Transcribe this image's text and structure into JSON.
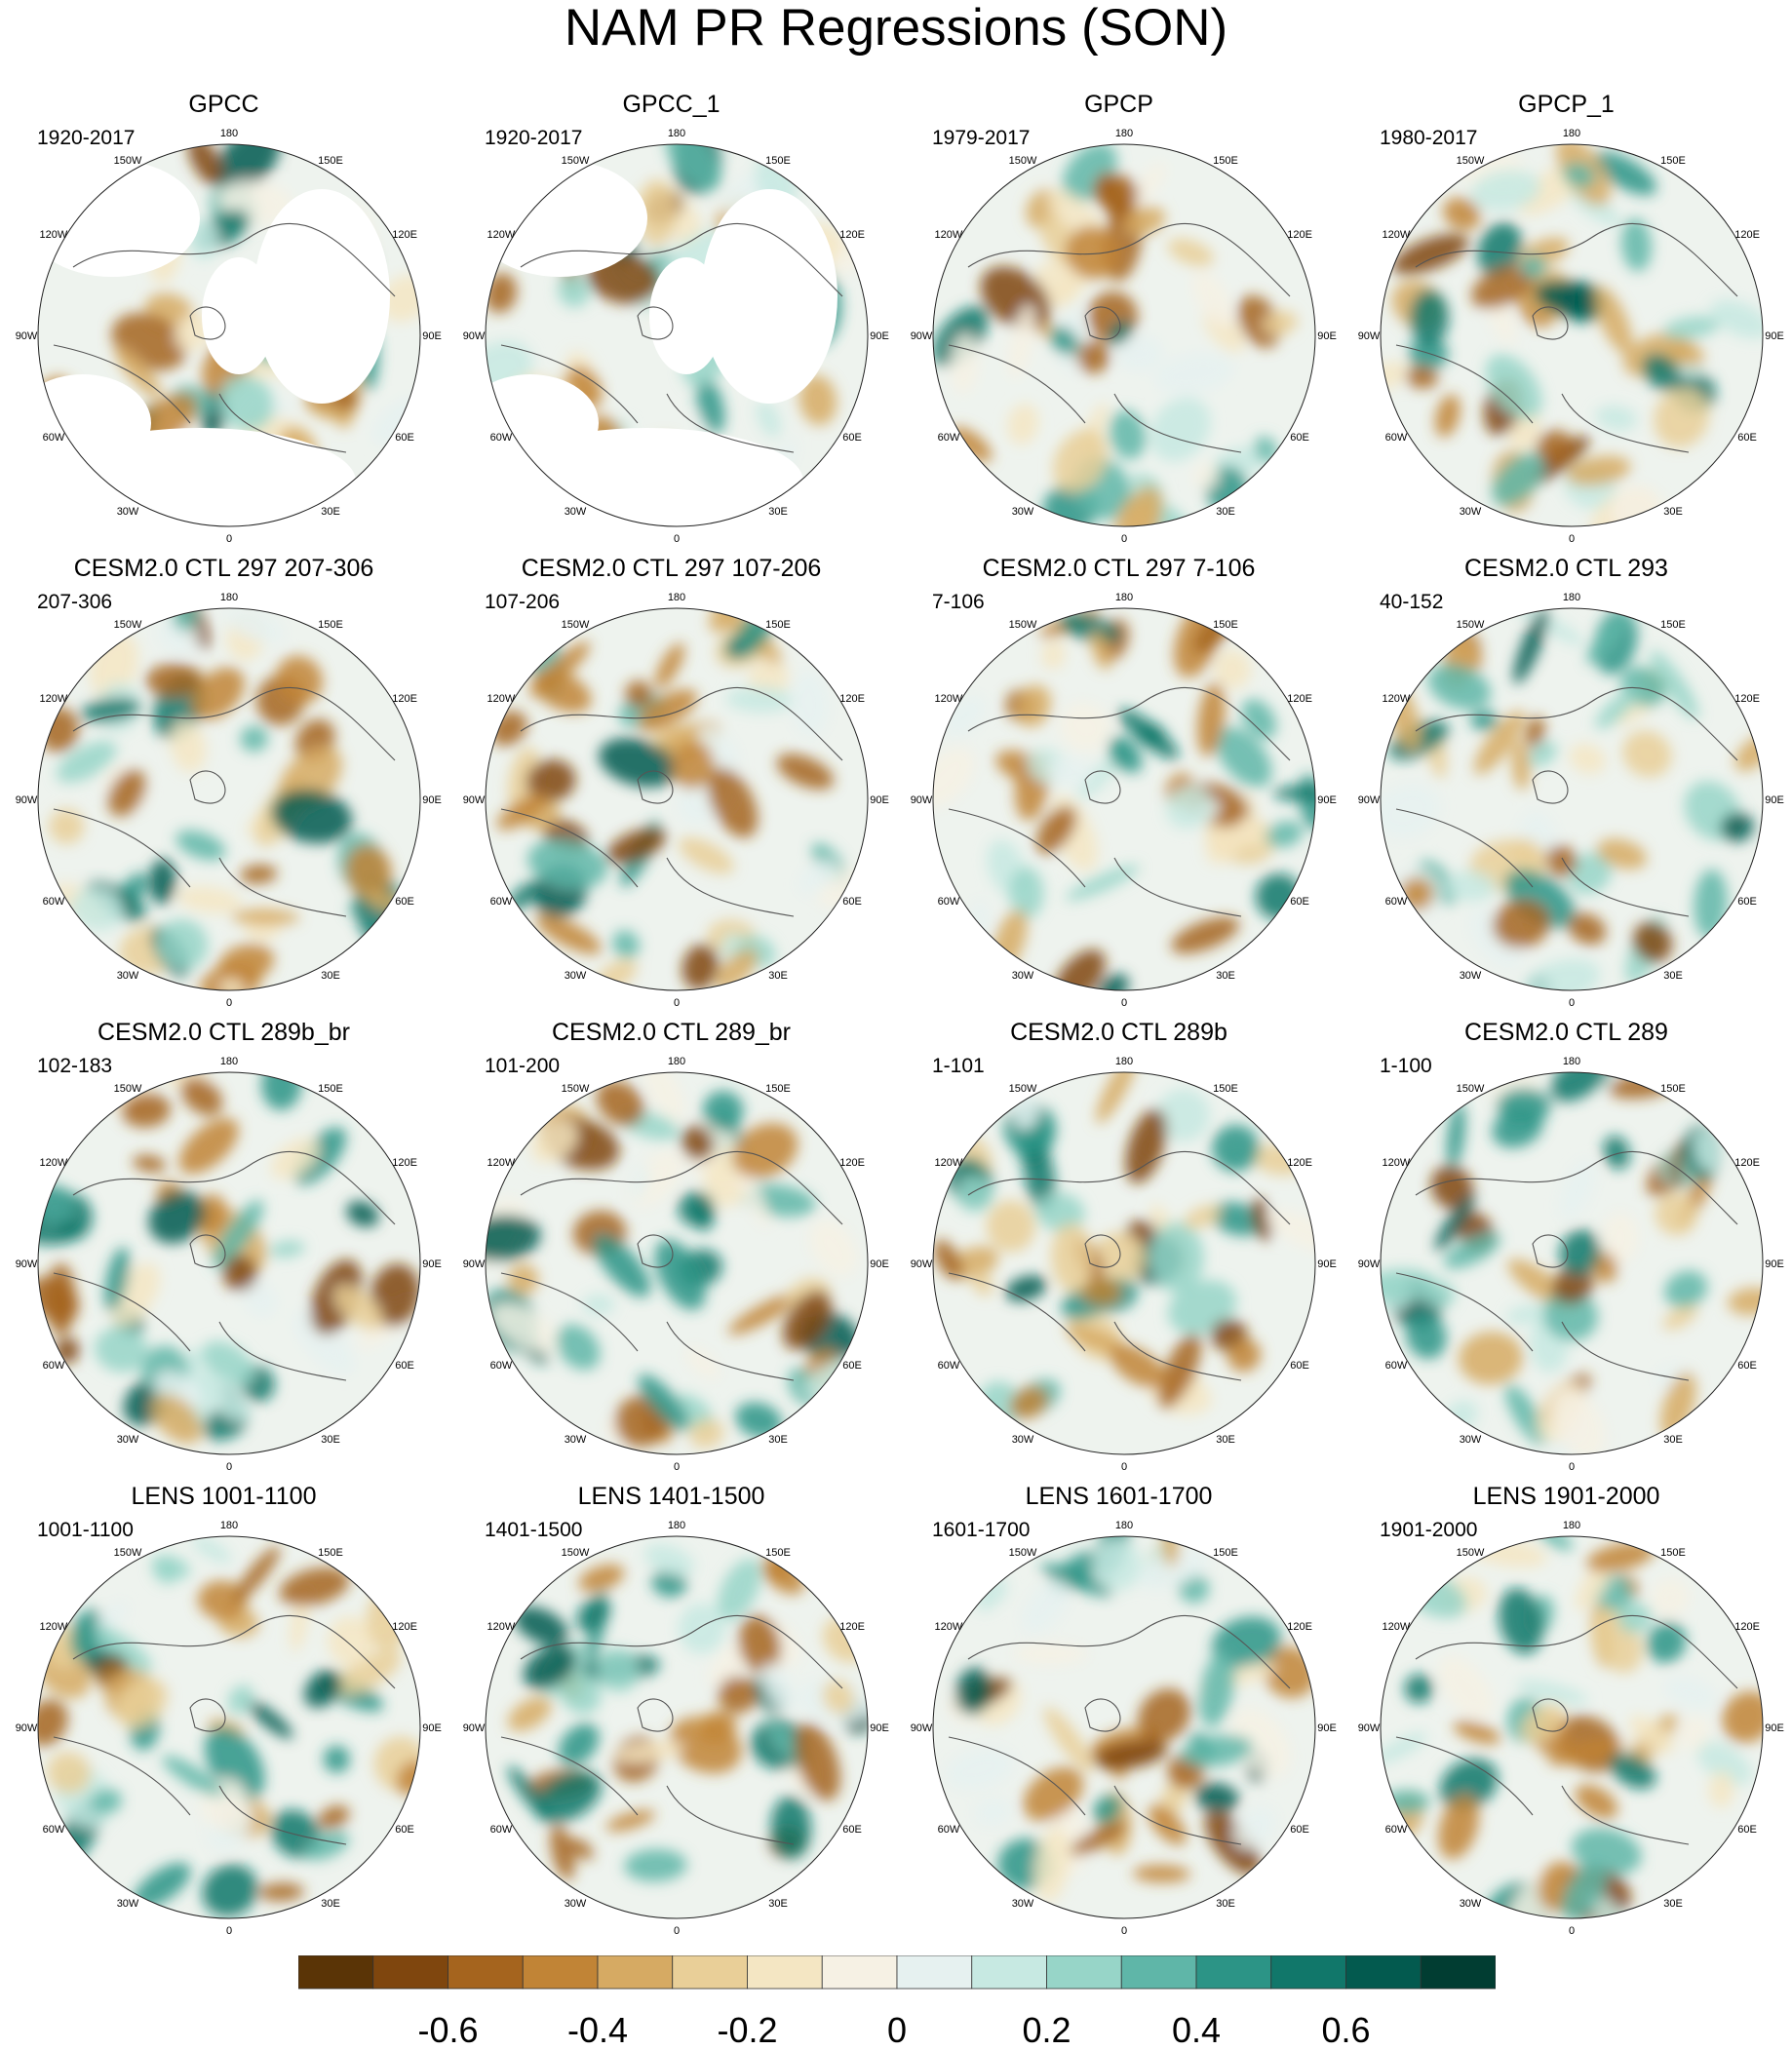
{
  "chart_data": {
    "type": "heatmap",
    "title": "NAM PR Regressions (SON)",
    "projection": "north polar stereographic",
    "longitude_labels": [
      "180",
      "150E",
      "120E",
      "90E",
      "60E",
      "30E",
      "0",
      "30W",
      "60W",
      "90W",
      "120W",
      "150W"
    ],
    "panels": [
      {
        "title": "GPCC",
        "period": "1920-2017",
        "coverage": "land only"
      },
      {
        "title": "GPCC_1",
        "period": "1920-2017",
        "coverage": "land only"
      },
      {
        "title": "GPCP",
        "period": "1979-2017",
        "coverage": "global"
      },
      {
        "title": "GPCP_1",
        "period": "1980-2017",
        "coverage": "global"
      },
      {
        "title": "CESM2.0 CTL 297 207-306",
        "period": "207-306",
        "coverage": "global"
      },
      {
        "title": "CESM2.0 CTL 297 107-206",
        "period": "107-206",
        "coverage": "global"
      },
      {
        "title": "CESM2.0 CTL 297 7-106",
        "period": "7-106",
        "coverage": "global"
      },
      {
        "title": "CESM2.0 CTL 293",
        "period": "40-152",
        "coverage": "global"
      },
      {
        "title": "CESM2.0 CTL 289b_br",
        "period": "102-183",
        "coverage": "global"
      },
      {
        "title": "CESM2.0 CTL 289_br",
        "period": "101-200",
        "coverage": "global"
      },
      {
        "title": "CESM2.0 CTL 289b",
        "period": "1-101",
        "coverage": "global"
      },
      {
        "title": "CESM2.0 CTL 289",
        "period": "1-100",
        "coverage": "global"
      },
      {
        "title": "LENS 1001-1100",
        "period": "1001-1100",
        "coverage": "global"
      },
      {
        "title": "LENS 1401-1500",
        "period": "1401-1500",
        "coverage": "global"
      },
      {
        "title": "LENS 1601-1700",
        "period": "1601-1700",
        "coverage": "global"
      },
      {
        "title": "LENS 1901-2000",
        "period": "1901-2000",
        "coverage": "global"
      }
    ],
    "colorbar": {
      "colors": [
        "#5a3406",
        "#7f460e",
        "#a5641e",
        "#c18436",
        "#d6aa63",
        "#e9cf98",
        "#f4e6c3",
        "#f6f1e4",
        "#e6f1f0",
        "#c7e9e2",
        "#97d5c8",
        "#5fb6a8",
        "#2c9486",
        "#11776a",
        "#035a4f",
        "#013d32"
      ],
      "ticks": [
        -0.6,
        -0.4,
        -0.2,
        0,
        0.2,
        0.4,
        0.6
      ],
      "tick_labels": [
        "-0.6",
        "-0.4",
        "-0.2",
        "0",
        "0.2",
        "0.4",
        "0.6"
      ],
      "range": [
        -0.8,
        0.8
      ]
    }
  }
}
